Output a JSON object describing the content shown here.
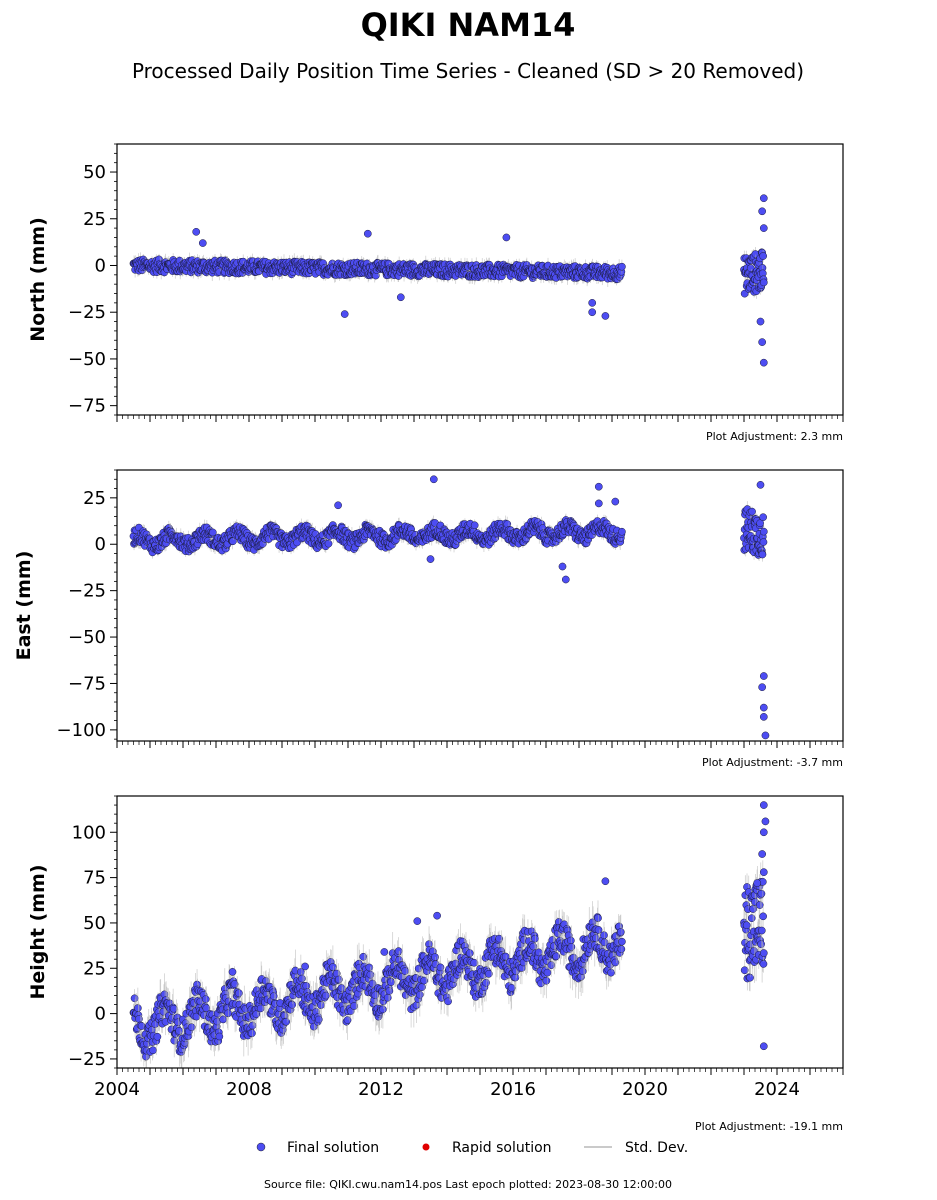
{
  "chart_data": {
    "type": "scatter",
    "title": "QIKI NAM14",
    "subtitle": "Processed Daily Position Time Series - Cleaned (SD > 20 Removed)",
    "x_ticks": [
      "2004",
      "2008",
      "2012",
      "2016",
      "2020",
      "2024"
    ],
    "xlim": [
      2004.0,
      2026.0
    ],
    "panels": [
      {
        "ylabel": "North (mm)",
        "ylim": [
          -80,
          65
        ],
        "yticks": [
          -75,
          -50,
          -25,
          0,
          25,
          50
        ],
        "adjustment": "Plot Adjustment: 2.3 mm",
        "trend_segments": [
          [
            2004.5,
            0,
            2019.3,
            -4
          ],
          [
            2023.0,
            -5,
            2023.6,
            -3
          ]
        ],
        "outliers": [
          [
            2006.4,
            18
          ],
          [
            2006.6,
            12
          ],
          [
            2010.9,
            -26
          ],
          [
            2011.6,
            17
          ],
          [
            2012.6,
            -17
          ],
          [
            2015.8,
            15
          ],
          [
            2018.4,
            -20
          ],
          [
            2018.4,
            -25
          ],
          [
            2018.8,
            -27
          ],
          [
            2023.6,
            36
          ],
          [
            2023.55,
            29
          ],
          [
            2023.6,
            20
          ],
          [
            2023.5,
            -30
          ],
          [
            2023.55,
            -41
          ],
          [
            2023.6,
            -52
          ]
        ]
      },
      {
        "ylabel": "East (mm)",
        "ylim": [
          -106,
          40
        ],
        "yticks": [
          -100,
          -75,
          -50,
          -25,
          0,
          25
        ],
        "adjustment": "Plot Adjustment: -3.7 mm",
        "trend_segments": [
          [
            2004.5,
            2,
            2019.3,
            7
          ],
          [
            2023.0,
            8,
            2023.6,
            5
          ]
        ],
        "outliers": [
          [
            2010.7,
            21
          ],
          [
            2013.6,
            35
          ],
          [
            2013.5,
            -8
          ],
          [
            2017.6,
            -19
          ],
          [
            2017.5,
            -12
          ],
          [
            2018.6,
            31
          ],
          [
            2018.6,
            22
          ],
          [
            2019.1,
            23
          ],
          [
            2023.5,
            32
          ],
          [
            2023.6,
            -71
          ],
          [
            2023.55,
            -77
          ],
          [
            2023.6,
            -88
          ],
          [
            2023.6,
            -93
          ],
          [
            2023.65,
            -103
          ]
        ]
      },
      {
        "ylabel": "Height (mm)",
        "ylim": [
          -30,
          120
        ],
        "yticks": [
          -25,
          0,
          25,
          50,
          75,
          100
        ],
        "adjustment": "Plot Adjustment: -19.1 mm",
        "trend_segments": [
          [
            2004.5,
            -8,
            2019.3,
            40
          ],
          [
            2023.0,
            45,
            2023.6,
            50
          ]
        ],
        "outliers": [
          [
            2007.5,
            23
          ],
          [
            2009.7,
            26
          ],
          [
            2012.1,
            34
          ],
          [
            2013.1,
            51
          ],
          [
            2013.7,
            54
          ],
          [
            2018.8,
            73
          ],
          [
            2023.6,
            115
          ],
          [
            2023.65,
            106
          ],
          [
            2023.6,
            100
          ],
          [
            2023.55,
            88
          ],
          [
            2023.6,
            78
          ],
          [
            2023.6,
            -18
          ],
          [
            2023.4,
            72
          ]
        ]
      }
    ],
    "legend": [
      "Final solution",
      "Rapid solution",
      "Std. Dev."
    ],
    "legend_placement": "bottom-center",
    "colors": {
      "final": "#4d4df2",
      "rapid": "#e00000",
      "stddev": "#b0b0b0"
    }
  },
  "footer": "Source file: QIKI.cwu.nam14.pos  Last epoch plotted: 2023-08-30 12:00:00"
}
